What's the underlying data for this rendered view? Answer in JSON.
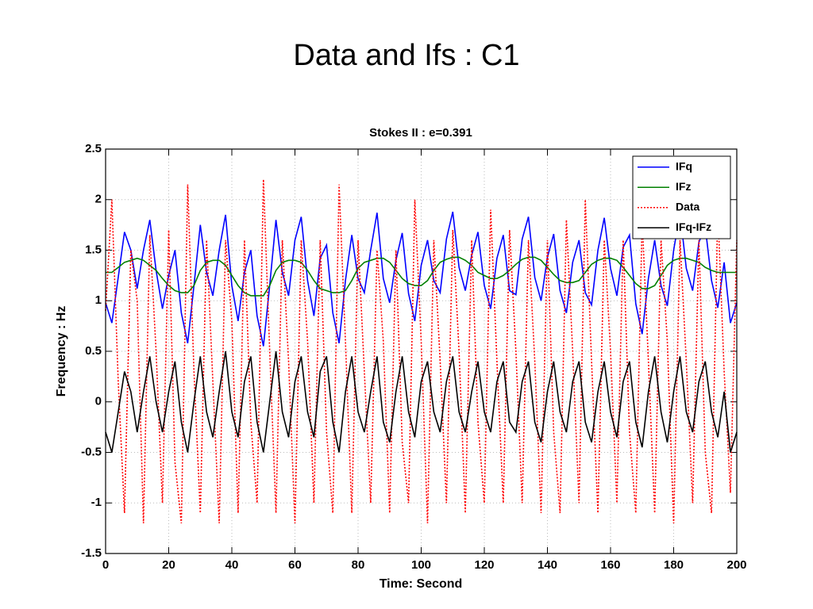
{
  "chart_data": {
    "type": "line",
    "title": "Data and Ifs : C1",
    "subtitle": "Stokes II : e=0.391",
    "x_label": "Time: Second",
    "y_label": "Frequency : Hz",
    "xlim": [
      0,
      200
    ],
    "ylim": [
      -1.5,
      2.5
    ],
    "xticks": [
      0,
      20,
      40,
      60,
      80,
      100,
      120,
      140,
      160,
      180,
      200
    ],
    "yticks": [
      -1.5,
      -1,
      -0.5,
      0,
      0.5,
      1,
      1.5,
      2,
      2.5
    ],
    "grid": true,
    "legend": "upper right",
    "x": [
      0,
      2,
      4,
      6,
      8,
      10,
      12,
      14,
      16,
      18,
      20,
      22,
      24,
      26,
      28,
      30,
      32,
      34,
      36,
      38,
      40,
      42,
      44,
      46,
      48,
      50,
      52,
      54,
      56,
      58,
      60,
      62,
      64,
      66,
      68,
      70,
      72,
      74,
      76,
      78,
      80,
      82,
      84,
      86,
      88,
      90,
      92,
      94,
      96,
      98,
      100,
      102,
      104,
      106,
      108,
      110,
      112,
      114,
      116,
      118,
      120,
      122,
      124,
      126,
      128,
      130,
      132,
      134,
      136,
      138,
      140,
      142,
      144,
      146,
      148,
      150,
      152,
      154,
      156,
      158,
      160,
      162,
      164,
      166,
      168,
      170,
      172,
      174,
      176,
      178,
      180,
      182,
      184,
      186,
      188,
      190,
      192,
      194,
      196,
      198,
      200
    ],
    "series": [
      {
        "name": "IFq",
        "color": "#0000ff",
        "style": "solid",
        "values": [
          0.98,
          0.78,
          1.23,
          1.68,
          1.5,
          1.12,
          1.5,
          1.8,
          1.3,
          0.92,
          1.25,
          1.5,
          0.88,
          0.58,
          1.15,
          1.75,
          1.28,
          1.05,
          1.5,
          1.85,
          1.15,
          0.8,
          1.28,
          1.5,
          0.85,
          0.55,
          1.15,
          1.8,
          1.28,
          1.05,
          1.6,
          1.83,
          1.2,
          0.85,
          1.42,
          1.55,
          0.88,
          0.58,
          1.2,
          1.65,
          1.22,
          1.08,
          1.5,
          1.87,
          1.22,
          0.98,
          1.4,
          1.67,
          1.07,
          0.8,
          1.35,
          1.6,
          1.2,
          1.08,
          1.61,
          1.88,
          1.33,
          1.1,
          1.45,
          1.68,
          1.15,
          0.92,
          1.42,
          1.65,
          1.1,
          1.06,
          1.61,
          1.83,
          1.23,
          1.0,
          1.43,
          1.66,
          1.1,
          0.88,
          1.38,
          1.6,
          1.08,
          0.96,
          1.5,
          1.82,
          1.32,
          1.05,
          1.53,
          1.65,
          0.97,
          0.67,
          1.22,
          1.6,
          1.15,
          0.95,
          1.5,
          1.87,
          1.32,
          1.1,
          1.58,
          1.73,
          1.2,
          0.93,
          1.38,
          0.78,
          0.98
        ]
      },
      {
        "name": "IFz",
        "color": "#008000",
        "style": "solid",
        "values": [
          1.28,
          1.28,
          1.33,
          1.38,
          1.4,
          1.42,
          1.4,
          1.35,
          1.3,
          1.22,
          1.15,
          1.1,
          1.08,
          1.08,
          1.15,
          1.3,
          1.38,
          1.4,
          1.4,
          1.35,
          1.25,
          1.15,
          1.08,
          1.05,
          1.05,
          1.05,
          1.15,
          1.3,
          1.38,
          1.4,
          1.4,
          1.38,
          1.3,
          1.2,
          1.12,
          1.1,
          1.08,
          1.08,
          1.1,
          1.2,
          1.32,
          1.38,
          1.4,
          1.42,
          1.42,
          1.38,
          1.3,
          1.22,
          1.17,
          1.15,
          1.15,
          1.2,
          1.3,
          1.38,
          1.41,
          1.43,
          1.43,
          1.4,
          1.35,
          1.28,
          1.25,
          1.22,
          1.22,
          1.25,
          1.3,
          1.36,
          1.41,
          1.43,
          1.43,
          1.4,
          1.33,
          1.26,
          1.2,
          1.18,
          1.18,
          1.2,
          1.28,
          1.36,
          1.4,
          1.42,
          1.42,
          1.4,
          1.33,
          1.25,
          1.17,
          1.12,
          1.12,
          1.15,
          1.25,
          1.35,
          1.4,
          1.42,
          1.42,
          1.4,
          1.38,
          1.33,
          1.3,
          1.28,
          1.28,
          1.28,
          1.28
        ]
      },
      {
        "name": "Data",
        "color": "#ff0000",
        "style": "dotted",
        "values": [
          0.9,
          2.0,
          0.2,
          -1.1,
          1.5,
          1.0,
          -1.2,
          1.65,
          0.5,
          -1.0,
          1.7,
          -0.6,
          -1.2,
          2.15,
          0.3,
          -1.1,
          1.6,
          0.2,
          -1.2,
          1.6,
          0.8,
          -1.1,
          1.6,
          -0.2,
          -1.0,
          2.2,
          0.5,
          -1.1,
          1.6,
          0.4,
          -1.2,
          1.6,
          0.6,
          -1.0,
          1.6,
          -0.3,
          -1.1,
          2.15,
          0.6,
          -1.1,
          1.6,
          0.3,
          -1.0,
          1.5,
          0.6,
          -1.1,
          1.5,
          -0.4,
          -1.0,
          2.0,
          0.6,
          -1.2,
          1.6,
          0.4,
          -1.0,
          1.7,
          0.5,
          -1.1,
          1.6,
          -0.2,
          -1.0,
          1.9,
          0.4,
          -1.0,
          1.7,
          0.5,
          -1.0,
          1.6,
          0.4,
          -1.1,
          1.6,
          -0.3,
          -1.1,
          1.8,
          0.5,
          -1.0,
          2.0,
          0.4,
          -1.1,
          1.6,
          0.5,
          -1.0,
          1.6,
          -0.3,
          -1.1,
          1.8,
          0.4,
          -1.1,
          1.6,
          0.6,
          -1.2,
          1.6,
          0.4,
          -1.0,
          1.6,
          -0.5,
          -1.1,
          1.9,
          0.3,
          -0.9,
          1.6
        ]
      },
      {
        "name": "IFq-IFz",
        "color": "#000000",
        "style": "solid",
        "values": [
          -0.3,
          -0.5,
          -0.1,
          0.3,
          0.1,
          -0.3,
          0.1,
          0.45,
          0.0,
          -0.3,
          0.1,
          0.4,
          -0.2,
          -0.5,
          0.0,
          0.45,
          -0.1,
          -0.35,
          0.1,
          0.5,
          -0.1,
          -0.35,
          0.2,
          0.45,
          -0.2,
          -0.5,
          0.0,
          0.5,
          -0.1,
          -0.35,
          0.2,
          0.45,
          -0.1,
          -0.35,
          0.3,
          0.45,
          -0.2,
          -0.5,
          0.1,
          0.45,
          -0.1,
          -0.3,
          0.1,
          0.45,
          -0.2,
          -0.4,
          0.1,
          0.45,
          -0.1,
          -0.35,
          0.2,
          0.4,
          -0.1,
          -0.3,
          0.2,
          0.45,
          -0.1,
          -0.3,
          0.1,
          0.4,
          -0.1,
          -0.3,
          0.2,
          0.4,
          -0.2,
          -0.3,
          0.2,
          0.4,
          -0.2,
          -0.4,
          0.1,
          0.4,
          -0.1,
          -0.3,
          0.2,
          0.4,
          -0.2,
          -0.4,
          0.1,
          0.4,
          -0.1,
          -0.35,
          0.2,
          0.4,
          -0.2,
          -0.45,
          0.1,
          0.45,
          -0.1,
          -0.4,
          0.1,
          0.45,
          -0.1,
          -0.3,
          0.2,
          0.4,
          -0.1,
          -0.35,
          0.1,
          -0.5,
          -0.3
        ]
      }
    ]
  }
}
